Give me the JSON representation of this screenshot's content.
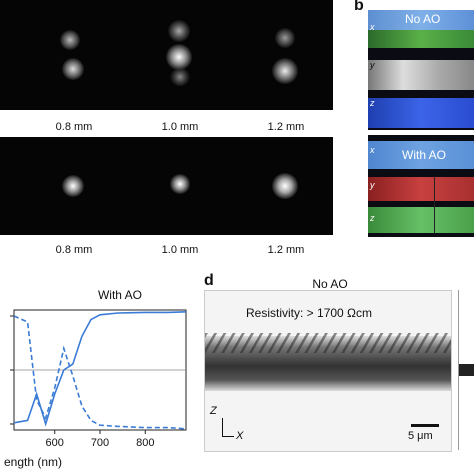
{
  "panel_a": {
    "distances": [
      "0.8 mm",
      "1.0 mm",
      "1.2 mm"
    ]
  },
  "panel_b": {
    "letter": "b",
    "top_label": "No AO",
    "bottom_label": "With AO",
    "axes": [
      "x",
      "y",
      "z"
    ]
  },
  "panel_c": {
    "title": "With AO",
    "xlabel": "ength (nm)",
    "xticks": [
      "600",
      "700",
      "800"
    ]
  },
  "panel_d": {
    "letter": "d",
    "title": "No AO",
    "resistivity": "Resistivity: > 1700 Ωcm",
    "scale_bar": "5 μm",
    "axis_z": "Z",
    "axis_x": "X"
  },
  "chart_data": {
    "type": "line",
    "title": "With AO",
    "xlabel": "ength (nm)",
    "xlim": [
      510,
      890
    ],
    "ylim": [
      0,
      1
    ],
    "x_ticks": [
      600,
      700,
      800
    ],
    "series": [
      {
        "style": "solid",
        "x": [
          510,
          540,
          560,
          580,
          600,
          620,
          640,
          660,
          680,
          700,
          740,
          800,
          850,
          890
        ],
        "values": [
          0.06,
          0.08,
          0.3,
          0.05,
          0.3,
          0.5,
          0.55,
          0.78,
          0.92,
          0.96,
          0.975,
          0.98,
          0.98,
          0.985
        ]
      },
      {
        "style": "dashed",
        "x": [
          510,
          540,
          560,
          580,
          600,
          620,
          640,
          660,
          680,
          700,
          740,
          800,
          850,
          890
        ],
        "values": [
          0.95,
          0.9,
          0.25,
          0.1,
          0.35,
          0.68,
          0.45,
          0.2,
          0.08,
          0.04,
          0.03,
          0.02,
          0.02,
          0.01
        ]
      }
    ]
  }
}
